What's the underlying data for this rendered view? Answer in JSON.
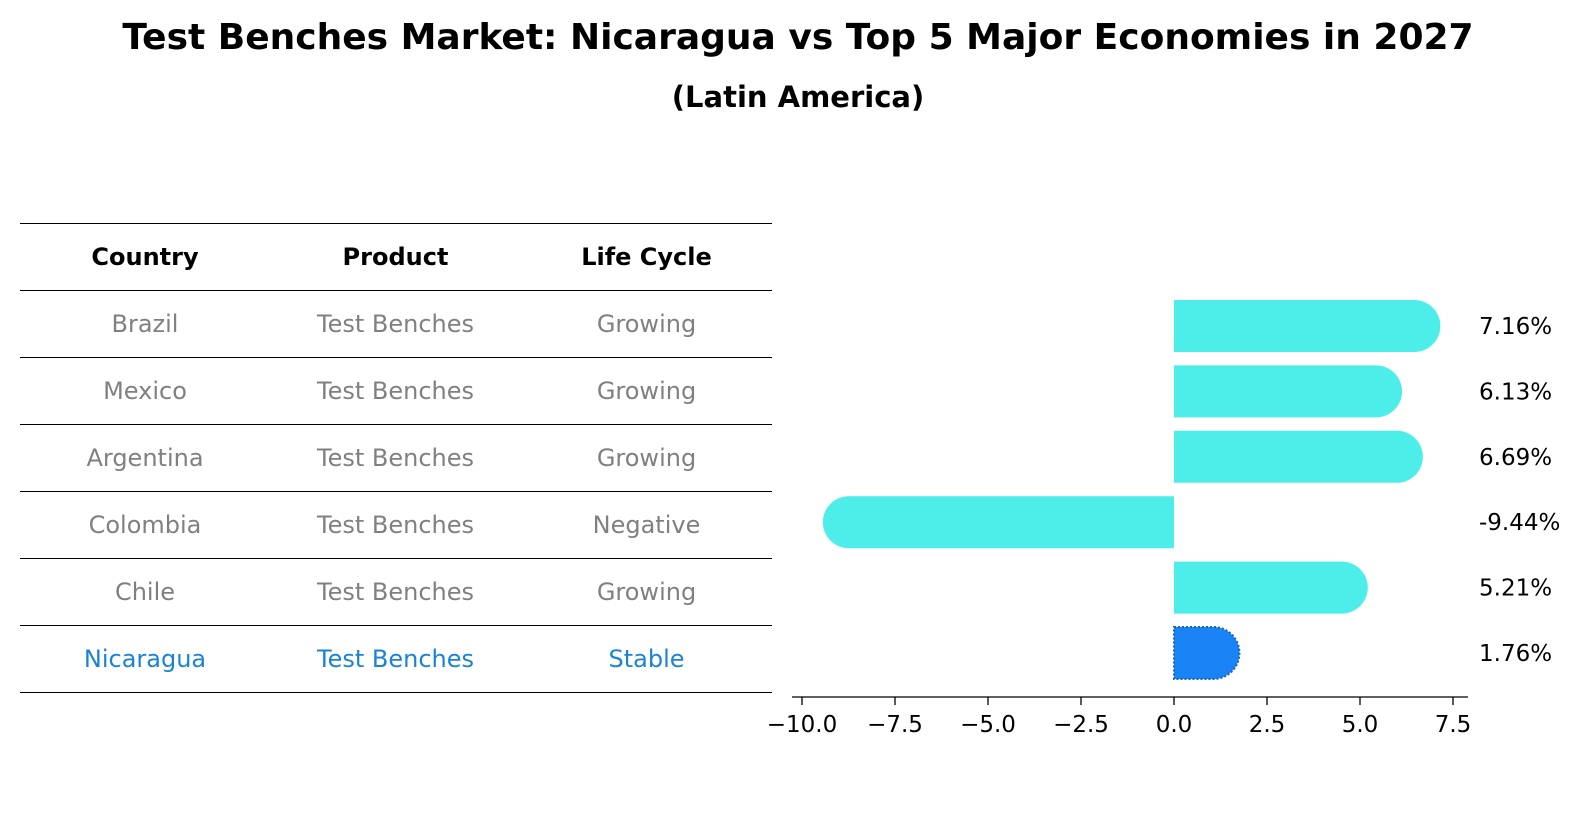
{
  "title": "Test Benches Market: Nicaragua vs Top 5 Major Economies in 2027",
  "subtitle": "(Latin America)",
  "table": {
    "headers": [
      "Country",
      "Product",
      "Life Cycle"
    ],
    "rows": [
      {
        "country": "Brazil",
        "product": "Test Benches",
        "life_cycle": "Growing",
        "highlight": false
      },
      {
        "country": "Mexico",
        "product": "Test Benches",
        "life_cycle": "Growing",
        "highlight": false
      },
      {
        "country": "Argentina",
        "product": "Test Benches",
        "life_cycle": "Growing",
        "highlight": false
      },
      {
        "country": "Colombia",
        "product": "Test Benches",
        "life_cycle": "Negative",
        "highlight": false
      },
      {
        "country": "Chile",
        "product": "Test Benches",
        "life_cycle": "Growing",
        "highlight": false
      },
      {
        "country": "Nicaragua",
        "product": "Test Benches",
        "life_cycle": "Stable",
        "highlight": true
      }
    ]
  },
  "colors": {
    "bar": "#4deeea",
    "highlight_bar": "#1a83f5",
    "highlight_text": "#1a83d6",
    "muted_text": "#808080"
  },
  "chart_data": {
    "type": "bar",
    "orientation": "horizontal",
    "categories": [
      "Brazil",
      "Mexico",
      "Argentina",
      "Colombia",
      "Chile",
      "Nicaragua"
    ],
    "values": [
      7.16,
      6.13,
      6.69,
      -9.44,
      5.21,
      1.76
    ],
    "value_labels": [
      "7.16%",
      "6.13%",
      "6.69%",
      "-9.44%",
      "5.21%",
      "1.76%"
    ],
    "highlight_index": 5,
    "xlim": [
      -10.0,
      7.5
    ],
    "xticks": [
      -10.0,
      -7.5,
      -5.0,
      -2.5,
      0.0,
      2.5,
      5.0,
      7.5
    ],
    "xtick_labels": [
      "−10.0",
      "−7.5",
      "−5.0",
      "−2.5",
      "0.0",
      "2.5",
      "5.0",
      "7.5"
    ],
    "grid": false
  }
}
